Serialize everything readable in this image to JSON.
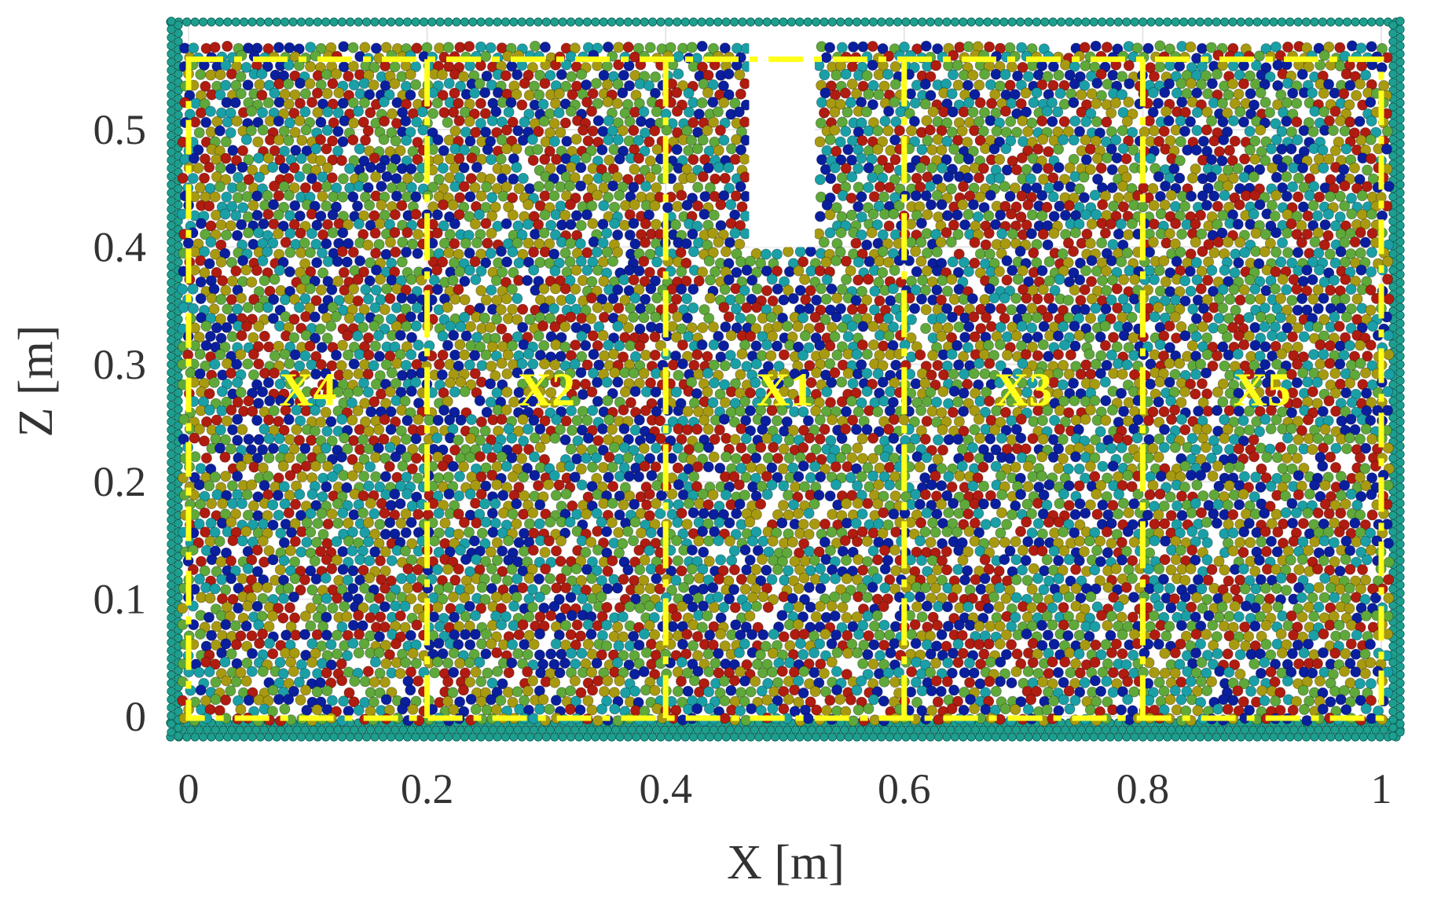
{
  "chart_data": {
    "type": "scatter",
    "title": "",
    "xlabel": "X [m]",
    "ylabel": "Z [m]",
    "xlim": [
      0,
      1.0
    ],
    "ylim": [
      0,
      0.55
    ],
    "x_ticks": [
      {
        "value": 0,
        "label": "0"
      },
      {
        "value": 0.2,
        "label": "0.2"
      },
      {
        "value": 0.4,
        "label": "0.4"
      },
      {
        "value": 0.6,
        "label": "0.6"
      },
      {
        "value": 0.8,
        "label": "0.8"
      },
      {
        "value": 1.0,
        "label": "1"
      }
    ],
    "y_ticks": [
      {
        "value": 0,
        "label": "0"
      },
      {
        "value": 0.1,
        "label": "0.1"
      },
      {
        "value": 0.2,
        "label": "0.2"
      },
      {
        "value": 0.3,
        "label": "0.3"
      },
      {
        "value": 0.4,
        "label": "0.4"
      },
      {
        "value": 0.5,
        "label": "0.5"
      }
    ],
    "grid": true,
    "description_regions": [
      {
        "name": "X4",
        "x_start": 0.0,
        "x_end": 0.2
      },
      {
        "name": "X2",
        "x_start": 0.2,
        "x_end": 0.4
      },
      {
        "name": "X1",
        "x_start": 0.4,
        "x_end": 0.6
      },
      {
        "name": "X3",
        "x_start": 0.6,
        "x_end": 0.8
      },
      {
        "name": "X5",
        "x_start": 0.8,
        "x_end": 1.0
      }
    ],
    "region_label_z": 0.265,
    "cavity": {
      "x_start": 0.47,
      "x_end": 0.525,
      "z_start": 0.4,
      "z_end": 0.55
    },
    "particle_colors": [
      "#0a1f9e",
      "#b01c10",
      "#a89a10",
      "#1a9fa6",
      "#5fa83a"
    ],
    "wall_color": "#1e9e8e",
    "region_line_color": "#ffff1a"
  }
}
